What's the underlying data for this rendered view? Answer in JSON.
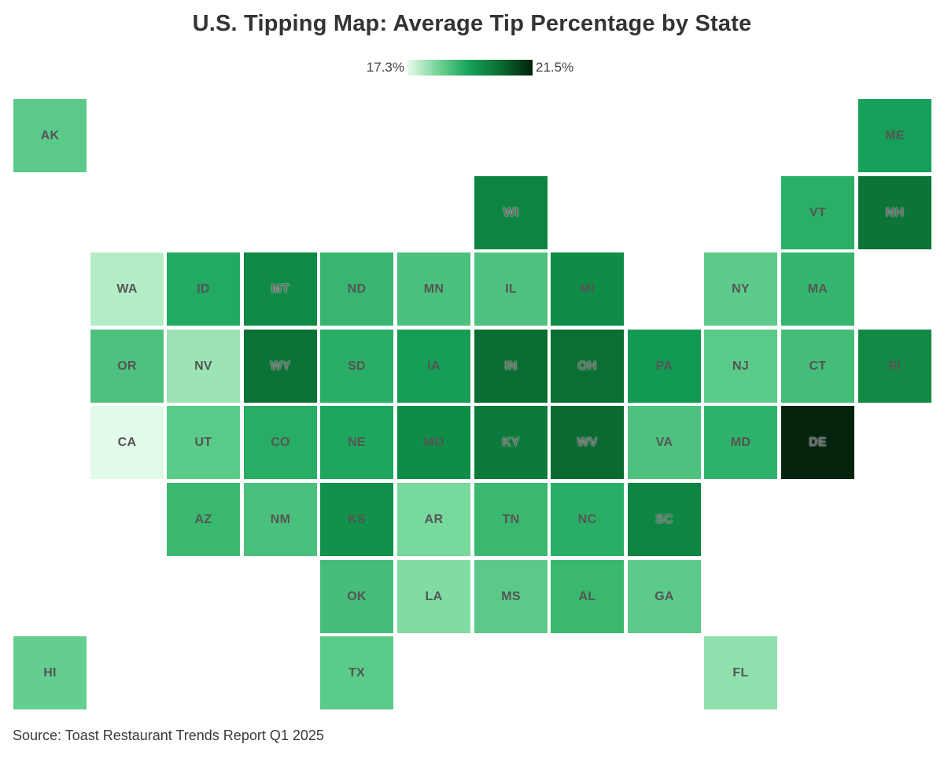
{
  "title": "U.S. Tipping Map: Average Tip Percentage by State",
  "legend": {
    "min_label": "17.3%",
    "max_label": "21.5%",
    "min_value": 17.3,
    "max_value": 21.5,
    "gradient_colors": [
      "#e8fbec",
      "#6fd393",
      "#14a058",
      "#0b6b30",
      "#02210c"
    ]
  },
  "source": "Source: Toast Restaurant Trends Report Q1 2025",
  "states": [
    {
      "abbr": "AK",
      "row": 0,
      "col": 0,
      "color": "#5bca89"
    },
    {
      "abbr": "ME",
      "row": 0,
      "col": 11,
      "color": "#169f58"
    },
    {
      "abbr": "WI",
      "row": 1,
      "col": 6,
      "color": "#0e8442"
    },
    {
      "abbr": "VT",
      "row": 1,
      "col": 10,
      "color": "#2aaf66"
    },
    {
      "abbr": "NH",
      "row": 1,
      "col": 11,
      "color": "#0c7436"
    },
    {
      "abbr": "WA",
      "row": 2,
      "col": 1,
      "color": "#b5ecc8"
    },
    {
      "abbr": "ID",
      "row": 2,
      "col": 2,
      "color": "#22a962"
    },
    {
      "abbr": "MT",
      "row": 2,
      "col": 3,
      "color": "#0f8a45"
    },
    {
      "abbr": "ND",
      "row": 2,
      "col": 4,
      "color": "#38b670"
    },
    {
      "abbr": "MN",
      "row": 2,
      "col": 5,
      "color": "#4cc07d"
    },
    {
      "abbr": "IL",
      "row": 2,
      "col": 6,
      "color": "#4fc27f"
    },
    {
      "abbr": "MI",
      "row": 2,
      "col": 7,
      "color": "#0f8c46"
    },
    {
      "abbr": "NY",
      "row": 2,
      "col": 9,
      "color": "#5ccb8a"
    },
    {
      "abbr": "MA",
      "row": 2,
      "col": 10,
      "color": "#36b56e"
    },
    {
      "abbr": "OR",
      "row": 3,
      "col": 1,
      "color": "#4ec17f"
    },
    {
      "abbr": "NV",
      "row": 3,
      "col": 2,
      "color": "#9de4b5"
    },
    {
      "abbr": "WY",
      "row": 3,
      "col": 3,
      "color": "#0b7235"
    },
    {
      "abbr": "SD",
      "row": 3,
      "col": 4,
      "color": "#2aae66"
    },
    {
      "abbr": "IA",
      "row": 3,
      "col": 5,
      "color": "#169d56"
    },
    {
      "abbr": "IN",
      "row": 3,
      "col": 6,
      "color": "#0a6e32"
    },
    {
      "abbr": "OH",
      "row": 3,
      "col": 7,
      "color": "#0b6f33"
    },
    {
      "abbr": "PA",
      "row": 3,
      "col": 8,
      "color": "#129a52"
    },
    {
      "abbr": "NJ",
      "row": 3,
      "col": 9,
      "color": "#5acb88"
    },
    {
      "abbr": "CT",
      "row": 3,
      "col": 10,
      "color": "#44bd79"
    },
    {
      "abbr": "RI",
      "row": 3,
      "col": 11,
      "color": "#128a46"
    },
    {
      "abbr": "CA",
      "row": 4,
      "col": 1,
      "color": "#e1faea"
    },
    {
      "abbr": "UT",
      "row": 4,
      "col": 2,
      "color": "#5acb88"
    },
    {
      "abbr": "CO",
      "row": 4,
      "col": 3,
      "color": "#29ac64"
    },
    {
      "abbr": "NE",
      "row": 4,
      "col": 4,
      "color": "#1ea65e"
    },
    {
      "abbr": "MO",
      "row": 4,
      "col": 5,
      "color": "#0e8d47"
    },
    {
      "abbr": "KY",
      "row": 4,
      "col": 6,
      "color": "#0c7a3a"
    },
    {
      "abbr": "WV",
      "row": 4,
      "col": 7,
      "color": "#0a6a30"
    },
    {
      "abbr": "VA",
      "row": 4,
      "col": 8,
      "color": "#4fc27f"
    },
    {
      "abbr": "MD",
      "row": 4,
      "col": 9,
      "color": "#2fb26a"
    },
    {
      "abbr": "DE",
      "row": 4,
      "col": 10,
      "color": "#03230d"
    },
    {
      "abbr": "AZ",
      "row": 5,
      "col": 2,
      "color": "#3ab86f"
    },
    {
      "abbr": "NM",
      "row": 5,
      "col": 3,
      "color": "#4bc07c"
    },
    {
      "abbr": "KS",
      "row": 5,
      "col": 4,
      "color": "#12914a"
    },
    {
      "abbr": "AR",
      "row": 5,
      "col": 5,
      "color": "#77d99c"
    },
    {
      "abbr": "TN",
      "row": 5,
      "col": 6,
      "color": "#3ab86f"
    },
    {
      "abbr": "NC",
      "row": 5,
      "col": 7,
      "color": "#2aae66"
    },
    {
      "abbr": "SC",
      "row": 5,
      "col": 8,
      "color": "#0e8542"
    },
    {
      "abbr": "OK",
      "row": 6,
      "col": 4,
      "color": "#46bd7a"
    },
    {
      "abbr": "LA",
      "row": 6,
      "col": 5,
      "color": "#80dca2"
    },
    {
      "abbr": "MS",
      "row": 6,
      "col": 6,
      "color": "#5bca89"
    },
    {
      "abbr": "AL",
      "row": 6,
      "col": 7,
      "color": "#3ab86f"
    },
    {
      "abbr": "GA",
      "row": 6,
      "col": 8,
      "color": "#5ccb8a"
    },
    {
      "abbr": "HI",
      "row": 7,
      "col": 0,
      "color": "#63ce8e"
    },
    {
      "abbr": "TX",
      "row": 7,
      "col": 4,
      "color": "#5acb88"
    },
    {
      "abbr": "FL",
      "row": 7,
      "col": 9,
      "color": "#8fe0ad"
    }
  ]
}
